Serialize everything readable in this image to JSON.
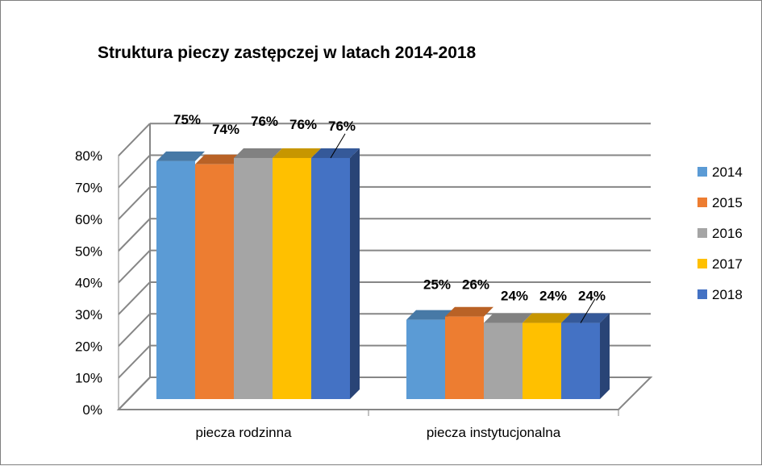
{
  "colors": {
    "2014": "#5b9bd5",
    "2015": "#ed7d31",
    "2016": "#a5a5a5",
    "2017": "#ffc000",
    "2018": "#4472c4",
    "grid": "#868686"
  },
  "chart_data": {
    "type": "bar",
    "title": "Struktura pieczy zastępczej w latach 2014-2018",
    "xlabel": "",
    "ylabel": "",
    "categories": [
      "piecza rodzinna",
      "piecza instytucjonalna"
    ],
    "series": [
      {
        "name": "2014",
        "values": [
          75,
          25
        ],
        "labels": [
          "75%",
          "25%"
        ]
      },
      {
        "name": "2015",
        "values": [
          74,
          26
        ],
        "labels": [
          "74%",
          "26%"
        ]
      },
      {
        "name": "2016",
        "values": [
          76,
          24
        ],
        "labels": [
          "76%",
          "24%"
        ]
      },
      {
        "name": "2017",
        "values": [
          76,
          24
        ],
        "labels": [
          "76%",
          "24%"
        ]
      },
      {
        "name": "2018",
        "values": [
          76,
          24
        ],
        "labels": [
          "76%",
          "24%"
        ]
      }
    ],
    "ylim": [
      0,
      80
    ],
    "yticks": [
      "0%",
      "10%",
      "20%",
      "30%",
      "40%",
      "50%",
      "60%",
      "70%",
      "80%"
    ],
    "grid": true,
    "legend": "right",
    "style": "3d-clustered-column"
  }
}
